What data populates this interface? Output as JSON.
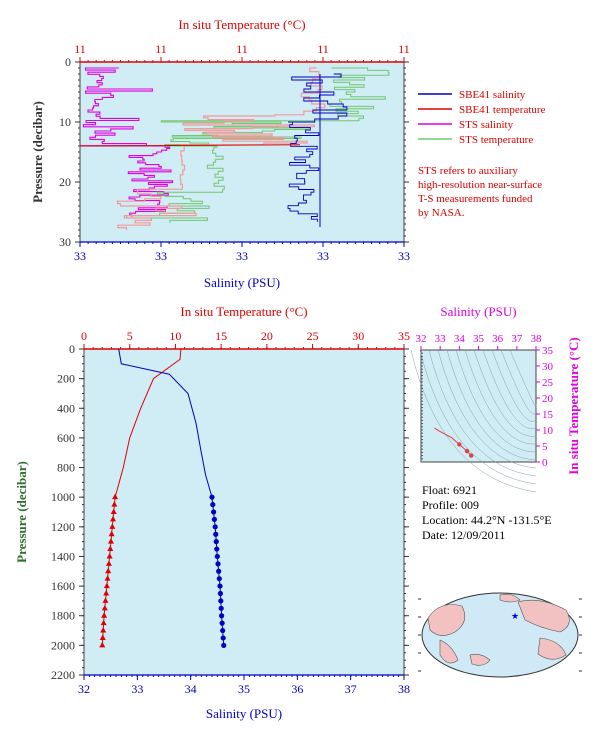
{
  "colors": {
    "plot_bg": "#d0ecf5",
    "red": "#e00000",
    "blue": "#0000c0",
    "magenta": "#e000e0",
    "pink": "#f09a9a",
    "green": "#70c870",
    "axis_dark": "#333333",
    "pressure_label": "#2f6f2f"
  },
  "top_panel": {
    "temp_axis_title": "In situ Temperature (°C)",
    "temp_ticks": [
      "11",
      "11",
      "11",
      "11",
      "11"
    ],
    "salinity_axis_title": "Salinity (PSU)",
    "salinity_ticks": [
      "33",
      "33",
      "33",
      "33",
      "33"
    ],
    "pressure_axis_title": "Pressure (decibar)",
    "pressure_ticks": [
      "0",
      "10",
      "20",
      "30"
    ],
    "legend": [
      {
        "label": "SBE41 salinity",
        "color": "#0000c0"
      },
      {
        "label": "SBE41 temperature",
        "color": "#e00000"
      },
      {
        "label": "STS salinity",
        "color": "#e000e0"
      },
      {
        "label": "STS temperature",
        "color": "#70c870"
      }
    ],
    "note": [
      "STS refers to auxiliary",
      "high-resolution near-surface",
      "T-S measurements funded",
      "by NASA."
    ]
  },
  "bottom_panel": {
    "temp_axis_title": "In situ Temperature (°C)",
    "temp_ticks": [
      "0",
      "5",
      "10",
      "15",
      "20",
      "25",
      "30",
      "35"
    ],
    "salinity_axis_title": "Salinity (PSU)",
    "salinity_ticks": [
      "32",
      "33",
      "34",
      "35",
      "36",
      "37",
      "38"
    ],
    "pressure_axis_title": "Pressure (decibar)",
    "pressure_ticks": [
      "0",
      "200",
      "400",
      "600",
      "800",
      "1000",
      "1200",
      "1400",
      "1600",
      "1800",
      "2000",
      "2200"
    ]
  },
  "ts_panel": {
    "salinity_axis_title": "Salinity (PSU)",
    "salinity_ticks": [
      "32",
      "33",
      "34",
      "35",
      "36",
      "37",
      "38"
    ],
    "temp_axis_title": "In situ Temperature (°C)",
    "temp_ticks": [
      "0",
      "5",
      "10",
      "15",
      "20",
      "25",
      "30",
      "35"
    ]
  },
  "float_info": {
    "float": "Float:  6921",
    "profile": "Profile:  009",
    "location": "Location:  44.2°N  -131.5°E",
    "date": "Date:  12/09/2011"
  },
  "chart_data": [
    {
      "type": "line",
      "panel": "top",
      "series": [
        {
          "name": "SBE41 salinity",
          "color": "#0000c0",
          "points": [
            [
              33.2,
              2
            ],
            [
              33.2,
              10
            ],
            [
              33.2,
              27
            ]
          ]
        },
        {
          "name": "SBE41 temperature",
          "color": "#e00000",
          "points": [
            [
              11.05,
              1
            ],
            [
              11.05,
              13
            ],
            [
              11.05,
              27
            ]
          ]
        }
      ],
      "ylabel": "Pressure (decibar)",
      "ylim": [
        0,
        30
      ],
      "grid": false
    },
    {
      "type": "line",
      "panel": "bottom",
      "series": [
        {
          "name": "Temperature",
          "color": "#e00000",
          "axis": "temperature",
          "points": [
            [
              10.6,
              0
            ],
            [
              10.5,
              70
            ],
            [
              7.6,
              200
            ],
            [
              6.2,
              400
            ],
            [
              5.0,
              600
            ],
            [
              4.3,
              800
            ],
            [
              3.4,
              1000
            ],
            [
              3.1,
              1200
            ],
            [
              2.8,
              1400
            ],
            [
              2.5,
              1600
            ],
            [
              2.2,
              1800
            ],
            [
              2.0,
              2000
            ]
          ]
        },
        {
          "name": "Salinity",
          "color": "#0000c0",
          "axis": "salinity",
          "points": [
            [
              32.65,
              0
            ],
            [
              32.7,
              100
            ],
            [
              33.6,
              170
            ],
            [
              33.95,
              300
            ],
            [
              34.1,
              500
            ],
            [
              34.2,
              700
            ],
            [
              34.28,
              850
            ],
            [
              34.4,
              1000
            ],
            [
              34.46,
              1200
            ],
            [
              34.5,
              1400
            ],
            [
              34.55,
              1600
            ],
            [
              34.58,
              1800
            ],
            [
              34.62,
              2000
            ]
          ]
        }
      ],
      "xlim_temperature": [
        0,
        35
      ],
      "xlim_salinity": [
        32,
        38
      ],
      "ylim": [
        0,
        2200
      ],
      "grid": false
    },
    {
      "type": "scatter",
      "panel": "ts-diagram",
      "series": [
        {
          "color": "#e04040",
          "points": [
            [
              32.7,
              10.6
            ],
            [
              33.0,
              9.5
            ],
            [
              33.6,
              7.6
            ],
            [
              34.0,
              5.5
            ],
            [
              34.4,
              3.4
            ],
            [
              34.62,
              2.0
            ]
          ]
        }
      ],
      "xlim": [
        32,
        38
      ],
      "ylim": [
        0,
        35
      ]
    }
  ]
}
